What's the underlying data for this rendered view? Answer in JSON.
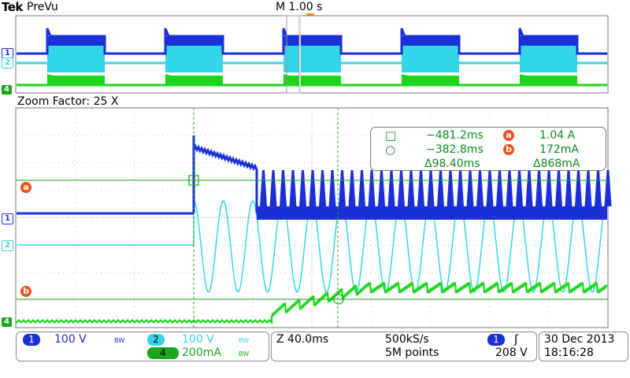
{
  "header": {
    "brand": "Tek",
    "mode": "PreVu",
    "timebase": "M 1.00 s"
  },
  "zoom": {
    "label": "Zoom Factor: 25 X"
  },
  "channels": {
    "ch1": {
      "label": "1",
      "color": "#1a2fd6"
    },
    "ch2": {
      "label": "2",
      "color": "#33d6e6"
    },
    "ch4": {
      "label": "4",
      "color": "#1ad61a"
    }
  },
  "cursor_markers": {
    "a": "a",
    "b": "b"
  },
  "measurements": {
    "t1": "−481.2ms",
    "t2": "−382.8ms",
    "dt": "Δ98.40ms",
    "a_value": "1.04 A",
    "b_value": "172mA",
    "di": "Δ868mA",
    "a_label": "a",
    "b_label": "b"
  },
  "bottom": {
    "ch1_num": "1",
    "ch1_scale": "100 V",
    "ch2_num": "2",
    "ch2_scale": "100 V",
    "ch4_num": "4",
    "ch4_scale": "200mA",
    "bw": "BW",
    "zoom_time": "Z 40.0ms",
    "sample_rate": "500kS/s",
    "record_length": "5M points",
    "trig_source": "1",
    "trig_level": "208 V",
    "date": "30 Dec  2013",
    "time": "18:16:28"
  }
}
